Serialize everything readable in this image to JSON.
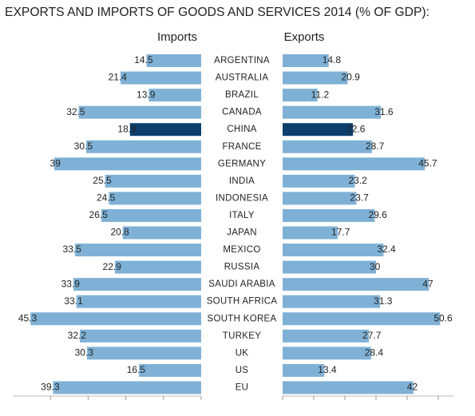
{
  "chart_data": {
    "type": "bar",
    "orientation": "horizontal",
    "layout": "back-to-back",
    "title": "EXPORTS AND IMPORTS OF GOODS AND SERVICES 2014 (% OF GDP):",
    "categories": [
      "ARGENTINA",
      "AUSTRALIA",
      "BRAZIL",
      "CANADA",
      "CHINA",
      "FRANCE",
      "GERMANY",
      "INDIA",
      "INDONESIA",
      "ITALY",
      "JAPAN",
      "MEXICO",
      "RUSSIA",
      "SAUDI ARABIA",
      "SOUTH AFRICA",
      "SOUTH KOREA",
      "TURKEY",
      "UK",
      "US",
      "EU"
    ],
    "series": [
      {
        "name": "Imports",
        "color": "#7fb1d6",
        "highlight_color": "#0d3f6e",
        "highlight_categories": [
          4
        ],
        "values": [
          14.5,
          21.4,
          13.9,
          32.5,
          18.9,
          30.5,
          39,
          25.5,
          24.5,
          26.5,
          20.8,
          33.5,
          22.9,
          33.9,
          33.1,
          45.3,
          32.2,
          30.3,
          16.5,
          39.3
        ],
        "xlim": [
          0,
          50
        ],
        "xticks": [
          0,
          10,
          20,
          30,
          40
        ]
      },
      {
        "name": "Exports",
        "color": "#7fb1d6",
        "highlight_color": "#0d3f6e",
        "highlight_categories": [
          4
        ],
        "values": [
          14.8,
          20.9,
          11.2,
          31.6,
          22.6,
          28.7,
          45.7,
          23.2,
          23.7,
          29.6,
          17.7,
          32.4,
          30,
          47,
          31.3,
          50.6,
          27.7,
          28.4,
          13.4,
          42
        ],
        "xlim": [
          0,
          55
        ],
        "xticks": [
          0,
          10,
          20,
          30,
          40,
          50
        ]
      }
    ]
  }
}
